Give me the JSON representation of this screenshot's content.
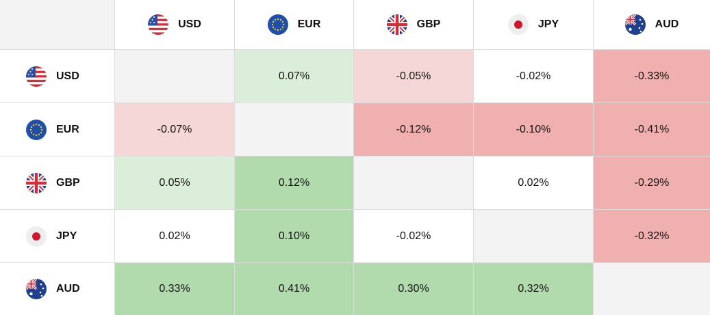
{
  "currencies": [
    {
      "code": "USD",
      "flag": "us-flag-icon"
    },
    {
      "code": "EUR",
      "flag": "eu-flag-icon"
    },
    {
      "code": "GBP",
      "flag": "uk-flag-icon"
    },
    {
      "code": "JPY",
      "flag": "jp-flag-icon"
    },
    {
      "code": "AUD",
      "flag": "au-flag-icon"
    }
  ],
  "matrix": [
    [
      "",
      "0.07%",
      "-0.05%",
      "-0.02%",
      "-0.33%"
    ],
    [
      "-0.07%",
      "",
      "-0.12%",
      "-0.10%",
      "-0.41%"
    ],
    [
      "0.05%",
      "0.12%",
      "",
      "0.02%",
      "-0.29%"
    ],
    [
      "0.02%",
      "0.10%",
      "-0.02%",
      "",
      "-0.32%"
    ],
    [
      "0.33%",
      "0.41%",
      "0.30%",
      "0.32%",
      ""
    ]
  ],
  "colors": {
    "diagonal": "#f3f3f3",
    "neutral": "#ffffff",
    "green_light": "#daeed9",
    "green_strong": "#b1dbad",
    "red_light": "#f6d7d8",
    "red_strong": "#f0b0af"
  },
  "cell_shades": [
    [
      "diagonal",
      "green_light",
      "red_light",
      "neutral",
      "red_strong"
    ],
    [
      "red_light",
      "diagonal",
      "red_strong",
      "red_strong",
      "red_strong"
    ],
    [
      "green_light",
      "green_strong",
      "diagonal",
      "neutral",
      "red_strong"
    ],
    [
      "neutral",
      "green_strong",
      "neutral",
      "diagonal",
      "red_strong"
    ],
    [
      "green_strong",
      "green_strong",
      "green_strong",
      "green_strong",
      "diagonal"
    ]
  ]
}
